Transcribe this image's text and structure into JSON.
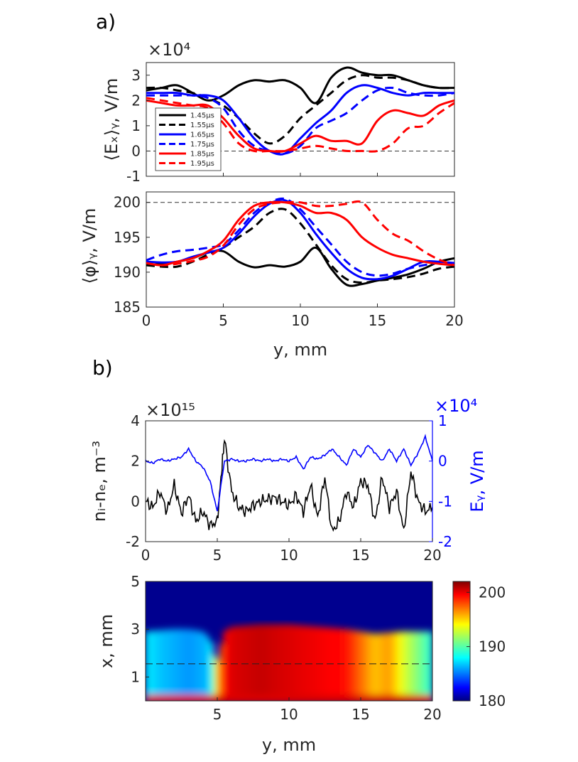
{
  "panel_labels": {
    "a": "a)",
    "b": "b)"
  },
  "chart_data": [
    {
      "id": "a-top",
      "type": "line",
      "ylabel": "⟨Eₓ⟩ᵧ, V/m",
      "exponent": "×10⁴",
      "xlim": [
        0,
        20
      ],
      "ylim": [
        -1,
        3.5
      ],
      "yticks": [
        "-1",
        "0",
        "1",
        "2",
        "3"
      ],
      "yticks_values": [
        -1,
        0,
        1,
        2,
        3
      ],
      "ref_line": 0,
      "legend_entries": [
        "1.45μs",
        "1.55μs",
        "1.65μs",
        "1.75μs",
        "1.85μs",
        "1.95μs"
      ],
      "series": [
        {
          "name": "1.45μs",
          "color": "#000000",
          "dash": false,
          "x": [
            0,
            1,
            2,
            3,
            4,
            5,
            6,
            7,
            8,
            9,
            10,
            11,
            12,
            13,
            14,
            15,
            16,
            17,
            18,
            19,
            20
          ],
          "y": [
            2.4,
            2.5,
            2.6,
            2.3,
            2.0,
            2.2,
            2.6,
            2.8,
            2.75,
            2.8,
            2.5,
            1.9,
            2.9,
            3.3,
            3.1,
            3.0,
            3.0,
            2.8,
            2.6,
            2.5,
            2.5
          ]
        },
        {
          "name": "1.55μs",
          "color": "#000000",
          "dash": true,
          "x": [
            0,
            1,
            2,
            3,
            4,
            5,
            6,
            7,
            8,
            9,
            10,
            11,
            12,
            13,
            14,
            15,
            16,
            17,
            18,
            19,
            20
          ],
          "y": [
            2.5,
            2.5,
            2.4,
            2.3,
            2.1,
            1.8,
            1.3,
            0.7,
            0.3,
            0.6,
            1.3,
            1.8,
            2.3,
            2.8,
            3.0,
            2.9,
            2.9,
            2.8,
            2.6,
            2.5,
            2.5
          ]
        },
        {
          "name": "1.65μs",
          "color": "#0000ff",
          "dash": false,
          "x": [
            0,
            1,
            2,
            3,
            4,
            5,
            6,
            7,
            8,
            9,
            10,
            11,
            12,
            13,
            14,
            15,
            16,
            17,
            18,
            19,
            20
          ],
          "y": [
            2.3,
            2.3,
            2.3,
            2.2,
            2.2,
            2.0,
            1.3,
            0.5,
            0.0,
            -0.1,
            0.5,
            1.1,
            1.6,
            2.3,
            2.6,
            2.5,
            2.3,
            2.2,
            2.3,
            2.3,
            2.3
          ]
        },
        {
          "name": "1.75μs",
          "color": "#0000ff",
          "dash": true,
          "x": [
            0,
            1,
            2,
            3,
            4,
            5,
            6,
            7,
            8,
            9,
            10,
            11,
            12,
            13,
            14,
            15,
            16,
            17,
            18,
            19,
            20
          ],
          "y": [
            2.2,
            2.2,
            2.2,
            2.2,
            2.1,
            1.7,
            0.8,
            0.2,
            0.0,
            -0.1,
            0.2,
            0.9,
            1.2,
            1.5,
            2.0,
            2.4,
            2.5,
            2.3,
            2.2,
            2.2,
            2.3
          ]
        },
        {
          "name": "1.85μs",
          "color": "#ff0000",
          "dash": false,
          "x": [
            0,
            1,
            2,
            3,
            4,
            5,
            6,
            7,
            8,
            9,
            10,
            11,
            12,
            13,
            14,
            15,
            16,
            17,
            18,
            19,
            20
          ],
          "y": [
            2.0,
            1.9,
            1.8,
            1.8,
            1.8,
            1.3,
            0.6,
            0.1,
            0.0,
            0.0,
            0.3,
            0.6,
            0.4,
            0.4,
            0.3,
            1.2,
            1.6,
            1.5,
            1.4,
            1.8,
            2.0
          ]
        },
        {
          "name": "1.95μs",
          "color": "#ff0000",
          "dash": true,
          "x": [
            0,
            1,
            2,
            3,
            4,
            5,
            6,
            7,
            8,
            9,
            10,
            11,
            12,
            13,
            14,
            15,
            16,
            17,
            18,
            19,
            20
          ],
          "y": [
            2.1,
            2.0,
            1.9,
            1.8,
            1.7,
            1.1,
            0.3,
            0.0,
            0.0,
            0.0,
            0.1,
            0.2,
            0.1,
            0.0,
            0.0,
            0.0,
            0.3,
            0.9,
            1.0,
            1.5,
            1.9
          ]
        }
      ]
    },
    {
      "id": "a-bottom",
      "type": "line",
      "ylabel": "⟨φ⟩ᵧ, V/m",
      "xlabel": "y, mm",
      "xlim": [
        0,
        20
      ],
      "ylim": [
        185,
        201.5
      ],
      "xticks": [
        "0",
        "5",
        "10",
        "15",
        "20"
      ],
      "xticks_values": [
        0,
        5,
        10,
        15,
        20
      ],
      "yticks": [
        "185",
        "190",
        "195",
        "200"
      ],
      "yticks_values": [
        185,
        190,
        195,
        200
      ],
      "ref_line": 200,
      "series": [
        {
          "name": "1.45μs",
          "color": "#000000",
          "dash": false,
          "x": [
            0,
            1,
            2,
            3,
            4,
            5,
            6,
            7,
            8,
            9,
            10,
            11,
            12,
            13,
            14,
            15,
            16,
            17,
            18,
            19,
            20
          ],
          "y": [
            191,
            191.2,
            191.5,
            192,
            192.8,
            193,
            191.5,
            190.7,
            191,
            190.8,
            191.5,
            193.5,
            190.5,
            188.2,
            188.3,
            188.8,
            189.2,
            189.7,
            190.5,
            191.5,
            192
          ]
        },
        {
          "name": "1.55μs",
          "color": "#000000",
          "dash": true,
          "x": [
            0,
            1,
            2,
            3,
            4,
            5,
            6,
            7,
            8,
            9,
            10,
            11,
            12,
            13,
            14,
            15,
            16,
            17,
            18,
            19,
            20
          ],
          "y": [
            191,
            190.8,
            190.8,
            191.5,
            192.5,
            193.5,
            195,
            196.5,
            198.5,
            199,
            197,
            194,
            191,
            189,
            188.5,
            188.8,
            189,
            189.3,
            189.8,
            190.5,
            190.8
          ]
        },
        {
          "name": "1.65μs",
          "color": "#0000ff",
          "dash": false,
          "x": [
            0,
            1,
            2,
            3,
            4,
            5,
            6,
            7,
            8,
            9,
            10,
            11,
            12,
            13,
            14,
            15,
            16,
            17,
            18,
            19,
            20
          ],
          "y": [
            191.5,
            191.4,
            191.5,
            192.2,
            192.8,
            193.5,
            195.5,
            198,
            199.8,
            200.3,
            198.5,
            195.5,
            192.8,
            190.5,
            189.2,
            189,
            189.5,
            190.5,
            191.5,
            191.5,
            191.3
          ]
        },
        {
          "name": "1.75μs",
          "color": "#0000ff",
          "dash": true,
          "x": [
            0,
            1,
            2,
            3,
            4,
            5,
            6,
            7,
            8,
            9,
            10,
            11,
            12,
            13,
            14,
            15,
            16,
            17,
            18,
            19,
            20
          ],
          "y": [
            191.7,
            192.5,
            193,
            193.2,
            193.5,
            194,
            196,
            198.5,
            200,
            200.5,
            199,
            196.5,
            194,
            191.5,
            190,
            189.5,
            189.8,
            190.5,
            191,
            191.3,
            191
          ]
        },
        {
          "name": "1.85μs",
          "color": "#ff0000",
          "dash": false,
          "x": [
            0,
            1,
            2,
            3,
            4,
            5,
            6,
            7,
            8,
            9,
            10,
            11,
            12,
            13,
            14,
            15,
            16,
            17,
            18,
            19,
            20
          ],
          "y": [
            191.3,
            191,
            191.5,
            192,
            193,
            194.5,
            197.5,
            199.5,
            200,
            200,
            199.5,
            198.5,
            198.5,
            197.5,
            195,
            193.5,
            192.5,
            192,
            191.5,
            191.2,
            191
          ]
        },
        {
          "name": "1.95μs",
          "color": "#ff0000",
          "dash": true,
          "x": [
            0,
            1,
            2,
            3,
            4,
            5,
            6,
            7,
            8,
            9,
            10,
            11,
            12,
            13,
            14,
            15,
            16,
            17,
            18,
            19,
            20
          ],
          "y": [
            191.3,
            191,
            191.2,
            191.6,
            192.2,
            193.8,
            196.8,
            199,
            199.8,
            200,
            200,
            199.5,
            199.5,
            199.8,
            200,
            197.5,
            195.5,
            194.5,
            193,
            191.8,
            191
          ]
        }
      ]
    },
    {
      "id": "b-top",
      "type": "line",
      "ylabel_left": "nᵢ-nₑ, m⁻³",
      "ylabel_right": "Eᵧ, V/m",
      "exponent_left": "×10¹⁵",
      "exponent_right": "×10⁴",
      "xlim": [
        0,
        20
      ],
      "ylim_left": [
        -2,
        4
      ],
      "ylim_right": [
        -2,
        1
      ],
      "xticks": [
        "0",
        "5",
        "10",
        "15",
        "20"
      ],
      "xticks_values": [
        0,
        5,
        10,
        15,
        20
      ],
      "yticks_left": [
        "-2",
        "0",
        "2",
        "4"
      ],
      "yticks_left_values": [
        -2,
        0,
        2,
        4
      ],
      "yticks_right": [
        "-2",
        "-1",
        "0",
        "1"
      ],
      "yticks_right_values": [
        -2,
        -1,
        0,
        1
      ],
      "right_color": "#0000ff",
      "series": [
        {
          "name": "nᵢ-nₑ",
          "axis": "left",
          "color": "#000000",
          "x": [
            0,
            0.5,
            1,
            1.5,
            2,
            2.5,
            3,
            3.5,
            4,
            4.5,
            5,
            5.3,
            5.5,
            6,
            6.5,
            7,
            7.5,
            8,
            8.5,
            9,
            9.5,
            10,
            10.5,
            11,
            11.5,
            12,
            12.5,
            13,
            13.5,
            14,
            14.5,
            15,
            15.5,
            16,
            16.5,
            17,
            17.5,
            18,
            18.5,
            19,
            19.5,
            20
          ],
          "y": [
            0,
            -0.3,
            0.5,
            -0.5,
            0.8,
            -0.6,
            0.3,
            -1.0,
            -0.5,
            -1.2,
            -1.0,
            1.5,
            3.1,
            0.5,
            -0.3,
            -0.5,
            -0.2,
            0.0,
            0.1,
            0.2,
            0.0,
            -0.2,
            0.3,
            -0.5,
            0.8,
            -0.8,
            1.2,
            -1.5,
            -1.0,
            0.5,
            -0.3,
            1.0,
            0.8,
            -1.0,
            1.2,
            -0.3,
            0.5,
            -1.5,
            1.5,
            0.0,
            -0.5,
            -0.3
          ]
        },
        {
          "name": "Eᵧ",
          "axis": "right",
          "color": "#0000ff",
          "x": [
            0,
            0.5,
            1,
            1.5,
            2,
            2.5,
            3,
            3.5,
            4,
            4.5,
            5,
            5.5,
            6,
            6.5,
            7,
            7.5,
            8,
            8.5,
            9,
            9.5,
            10,
            10.5,
            11,
            11.5,
            12,
            12.5,
            13,
            13.5,
            14,
            14.5,
            15,
            15.5,
            16,
            16.5,
            17,
            17.5,
            18,
            18.5,
            19,
            19.5,
            20
          ],
          "y": [
            0,
            -0.05,
            0.05,
            0.0,
            0.05,
            0.1,
            0.3,
            0.0,
            -0.15,
            -0.5,
            -1.25,
            0.0,
            0.05,
            0.0,
            0.0,
            0.05,
            0.0,
            0.05,
            0.0,
            0.05,
            0.0,
            0.1,
            -0.2,
            0.1,
            0.05,
            0.15,
            0.3,
            0.1,
            -0.1,
            0.3,
            0.1,
            0.4,
            0.2,
            0.0,
            0.3,
            0.0,
            0.3,
            -0.1,
            0.2,
            0.6,
            0.0
          ]
        }
      ]
    },
    {
      "id": "b-bottom",
      "type": "heatmap",
      "xlabel": "y, mm",
      "ylabel": "x, mm",
      "xlim": [
        0,
        20
      ],
      "ylim": [
        0,
        5
      ],
      "xticks": [
        "5",
        "10",
        "15",
        "20"
      ],
      "xticks_values": [
        5,
        10,
        15,
        20
      ],
      "yticks": [
        "1",
        "3",
        "5"
      ],
      "yticks_values": [
        1,
        3,
        5
      ],
      "dashed_line_x": 1.55,
      "colorbar_ticks": [
        "180",
        "190",
        "200"
      ],
      "colorbar_ticks_values": [
        180,
        190,
        200
      ],
      "colorbar_range": [
        180,
        202
      ],
      "colormap": "jet",
      "height_profile": {
        "y": [
          0,
          2,
          3,
          4,
          4.5,
          5,
          5.5,
          6,
          8,
          10,
          12,
          14,
          15,
          16,
          17,
          18,
          19,
          20
        ],
        "top": [
          2.9,
          3.0,
          3.0,
          2.9,
          2.6,
          1.5,
          2.9,
          3.1,
          3.2,
          3.2,
          3.1,
          3.0,
          2.9,
          2.8,
          2.85,
          2.9,
          2.9,
          2.9
        ]
      },
      "value_profile": {
        "y": [
          0,
          1,
          2,
          3,
          4,
          4.5,
          5,
          5.5,
          6,
          8,
          10,
          12,
          14,
          15,
          16,
          17,
          18,
          19,
          20
        ],
        "v": [
          188,
          187,
          186.5,
          186,
          186.5,
          187,
          195,
          199,
          200,
          200.5,
          200,
          199.5,
          199,
          197,
          195,
          196,
          193,
          191,
          189
        ]
      }
    }
  ]
}
